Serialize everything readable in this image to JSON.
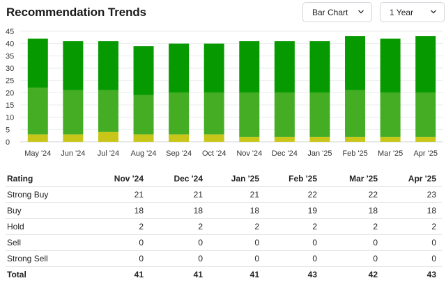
{
  "header": {
    "title": "Recommendation Trends",
    "chart_type_label": "Bar Chart",
    "range_label": "1 Year"
  },
  "colors": {
    "strong_buy": "#079a00",
    "buy": "#45ad24",
    "hold": "#c9c61a",
    "sell": "#e8782a",
    "strong_sell": "#d8232a"
  },
  "chart_data": {
    "type": "bar",
    "stacked": true,
    "categories": [
      "May '24",
      "Jun '24",
      "Jul '24",
      "Aug '24",
      "Sep '24",
      "Oct '24",
      "Nov '24",
      "Dec '24",
      "Jan '25",
      "Feb '25",
      "Mar '25",
      "Apr '25"
    ],
    "series": [
      {
        "name": "Hold",
        "values": [
          3,
          3,
          4,
          3,
          3,
          3,
          2,
          2,
          2,
          2,
          2,
          2
        ]
      },
      {
        "name": "Buy",
        "values": [
          19,
          18,
          17,
          16,
          17,
          17,
          18,
          18,
          18,
          19,
          18,
          18
        ]
      },
      {
        "name": "Strong Buy",
        "values": [
          20,
          20,
          20,
          20,
          20,
          20,
          21,
          21,
          21,
          22,
          22,
          23
        ]
      }
    ],
    "ylim": [
      0,
      45
    ],
    "yticks": [
      0,
      5,
      10,
      15,
      20,
      25,
      30,
      35,
      40,
      45
    ],
    "grid": true
  },
  "table": {
    "columns": [
      "Rating",
      "Nov '24",
      "Dec '24",
      "Jan '25",
      "Feb '25",
      "Mar '25",
      "Apr '25"
    ],
    "rows": [
      {
        "label": "Strong Buy",
        "values": [
          "21",
          "21",
          "21",
          "22",
          "22",
          "23"
        ]
      },
      {
        "label": "Buy",
        "values": [
          "18",
          "18",
          "18",
          "19",
          "18",
          "18"
        ]
      },
      {
        "label": "Hold",
        "values": [
          "2",
          "2",
          "2",
          "2",
          "2",
          "2"
        ]
      },
      {
        "label": "Sell",
        "values": [
          "0",
          "0",
          "0",
          "0",
          "0",
          "0"
        ]
      },
      {
        "label": "Strong Sell",
        "values": [
          "0",
          "0",
          "0",
          "0",
          "0",
          "0"
        ]
      }
    ],
    "total": {
      "label": "Total",
      "values": [
        "41",
        "41",
        "41",
        "43",
        "42",
        "43"
      ]
    }
  }
}
